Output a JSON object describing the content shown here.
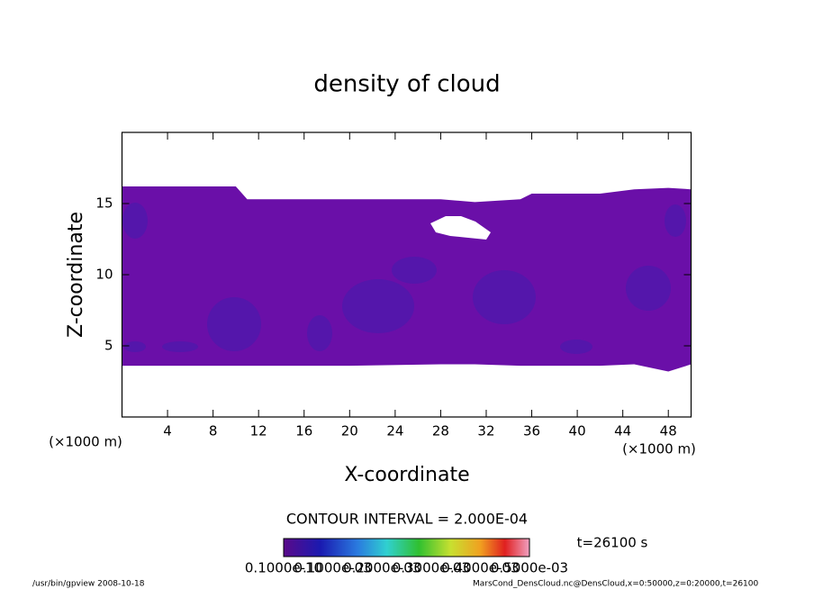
{
  "chart_data": {
    "type": "contour",
    "title": "density of cloud",
    "xlabel": "X-coordinate",
    "ylabel": "Z-coordinate",
    "xunit": "(×1000 m)",
    "yunit": "(×1000 m)",
    "xlim": [
      0,
      50
    ],
    "ylim": [
      0,
      20
    ],
    "xticks": [
      4,
      8,
      12,
      16,
      20,
      24,
      28,
      32,
      36,
      40,
      44,
      48
    ],
    "yticks": [
      5,
      10,
      15
    ],
    "color": "#6a0fa8",
    "x": [
      0,
      10,
      11,
      20,
      28,
      31,
      35,
      36,
      42,
      45,
      48,
      50
    ],
    "cloud_top": [
      16.2,
      16.2,
      15.3,
      15.3,
      15.3,
      15.1,
      15.3,
      15.7,
      15.7,
      16.0,
      16.1,
      16.0
    ],
    "cloud_base": [
      3.6,
      3.6,
      3.6,
      3.6,
      3.7,
      3.7,
      3.6,
      3.6,
      3.6,
      3.7,
      3.2,
      3.7
    ],
    "contour_interval": "CONTOUR INTERVAL = 2.000E-04",
    "time": "t=26100 s",
    "colorbar_labels": [
      "0.1000e-10",
      "0.1000e-03",
      "0.2000e-03",
      "0.3000e-03",
      "0.4000e-03",
      "0.5000e-03"
    ],
    "footer_left": "/usr/bin/gpview   2008-10-18",
    "footer_right": "MarsCond_DensCloud.nc@DensCloud,x=0:50000,z=0:20000,t=26100"
  }
}
